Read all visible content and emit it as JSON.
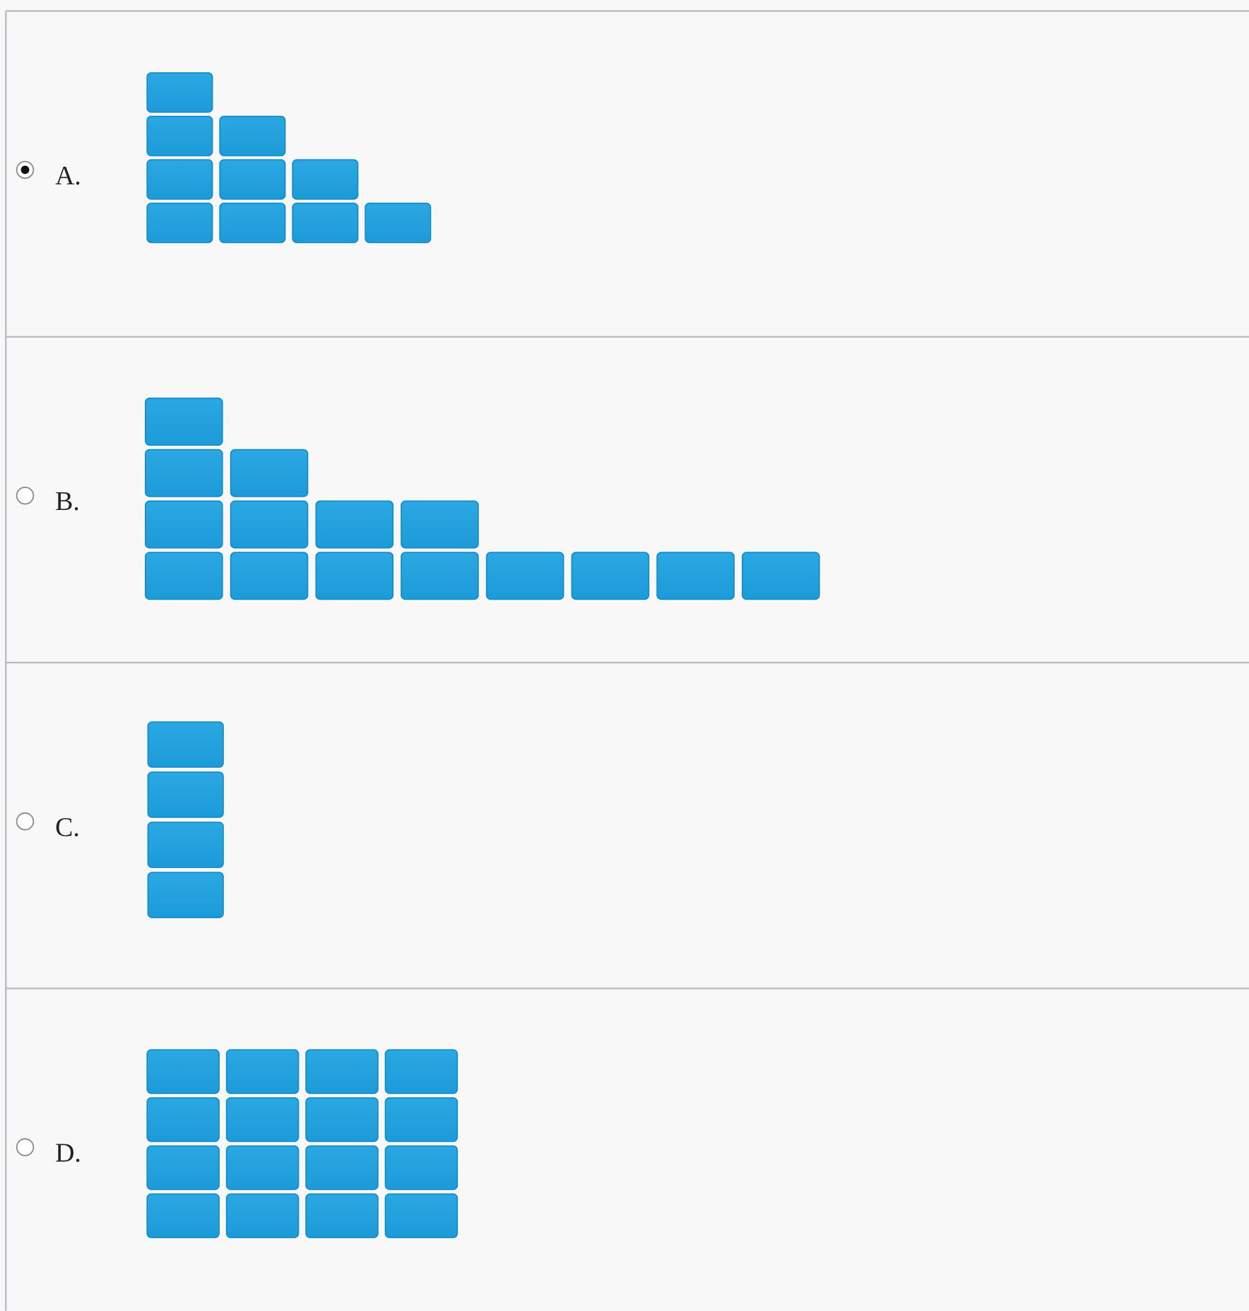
{
  "options": [
    {
      "label": "A.",
      "selected": true,
      "columns": [
        4,
        3,
        2,
        1
      ]
    },
    {
      "label": "B.",
      "selected": false,
      "columns": [
        4,
        3,
        2,
        2,
        1,
        1,
        1,
        1
      ]
    },
    {
      "label": "C.",
      "selected": false,
      "columns": [
        4
      ]
    },
    {
      "label": "D.",
      "selected": false,
      "columns": [
        4,
        4,
        4,
        4
      ]
    }
  ]
}
